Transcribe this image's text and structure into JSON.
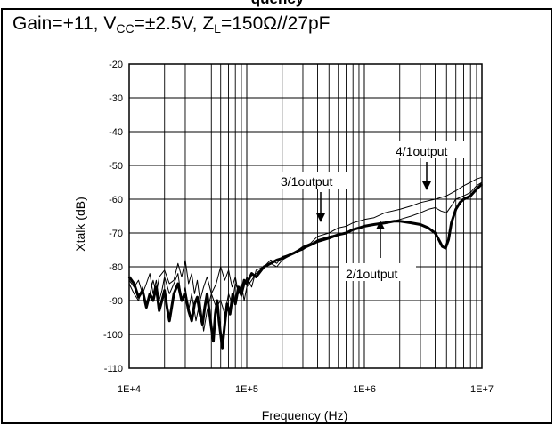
{
  "figure": {
    "cut_title_fragment": "quency",
    "conditions": {
      "gain_text": "Gain=+11, V",
      "vcc_sub": "CC",
      "vcc_text": "=±2.5V, Z",
      "zl_sub": "L",
      "zl_text": "=150Ω//27pF"
    }
  },
  "chart_data": {
    "type": "line",
    "title": "",
    "xlabel": "Frequency (Hz)",
    "ylabel": "Xtalk (dB)",
    "x_scale": "log",
    "xlim": [
      10000,
      10000000
    ],
    "ylim": [
      -110,
      -20
    ],
    "x_ticks": [
      10000,
      100000,
      1000000,
      10000000
    ],
    "x_tick_labels": [
      "1E+4",
      "1E+5",
      "1E+6",
      "1E+7"
    ],
    "y_ticks": [
      -20,
      -30,
      -40,
      -50,
      -60,
      -70,
      -80,
      -90,
      -100,
      -110
    ],
    "y_tick_labels": [
      "-20",
      "-30",
      "-40",
      "-50",
      "-60",
      "-70",
      "-80",
      "-90",
      "-100",
      "-110"
    ],
    "grid": true,
    "annotations": [
      "4/1output",
      "3/1output",
      "2/1output"
    ],
    "series": [
      {
        "name": "3/1output",
        "style": "thin",
        "points": [
          [
            10000,
            -84
          ],
          [
            11000,
            -86
          ],
          [
            12000,
            -84
          ],
          [
            13000,
            -88
          ],
          [
            14000,
            -85
          ],
          [
            15000,
            -82
          ],
          [
            16000,
            -88
          ],
          [
            17000,
            -84
          ],
          [
            18000,
            -90
          ],
          [
            19000,
            -87
          ],
          [
            20000,
            -83
          ],
          [
            22000,
            -88
          ],
          [
            24000,
            -85
          ],
          [
            26000,
            -82
          ],
          [
            28000,
            -90
          ],
          [
            30000,
            -86
          ],
          [
            32000,
            -93
          ],
          [
            34000,
            -88
          ],
          [
            37000,
            -96
          ],
          [
            40000,
            -90
          ],
          [
            43000,
            -99
          ],
          [
            46000,
            -93
          ],
          [
            50000,
            -88
          ],
          [
            55000,
            -92
          ],
          [
            60000,
            -90
          ],
          [
            65000,
            -94
          ],
          [
            70000,
            -88
          ],
          [
            75000,
            -91
          ],
          [
            80000,
            -85
          ],
          [
            90000,
            -89
          ],
          [
            100000,
            -83
          ],
          [
            110000,
            -86
          ],
          [
            120000,
            -81
          ],
          [
            140000,
            -80
          ],
          [
            160000,
            -78
          ],
          [
            180000,
            -79
          ],
          [
            200000,
            -77
          ],
          [
            250000,
            -76
          ],
          [
            300000,
            -74
          ],
          [
            350000,
            -73
          ],
          [
            400000,
            -71
          ],
          [
            500000,
            -70
          ],
          [
            600000,
            -68.5
          ],
          [
            700000,
            -68
          ],
          [
            800000,
            -67
          ],
          [
            1000000,
            -66
          ],
          [
            1200000,
            -65.5
          ],
          [
            1500000,
            -64
          ],
          [
            2000000,
            -63
          ],
          [
            2500000,
            -62
          ],
          [
            3000000,
            -61
          ],
          [
            4000000,
            -60
          ],
          [
            5000000,
            -59
          ],
          [
            6000000,
            -57.5
          ],
          [
            7000000,
            -56
          ],
          [
            8000000,
            -55
          ],
          [
            9000000,
            -54
          ],
          [
            10000000,
            -53.5
          ]
        ]
      },
      {
        "name": "4/1output",
        "style": "thin",
        "points": [
          [
            10000,
            -85
          ],
          [
            11000,
            -88
          ],
          [
            12000,
            -90
          ],
          [
            13000,
            -86
          ],
          [
            14000,
            -92
          ],
          [
            15000,
            -88
          ],
          [
            16000,
            -84
          ],
          [
            17000,
            -88
          ],
          [
            18000,
            -83
          ],
          [
            20000,
            -81
          ],
          [
            22000,
            -85
          ],
          [
            24000,
            -84
          ],
          [
            26000,
            -79
          ],
          [
            28000,
            -83
          ],
          [
            30000,
            -78
          ],
          [
            32000,
            -85
          ],
          [
            34000,
            -82
          ],
          [
            36000,
            -88
          ],
          [
            38000,
            -84
          ],
          [
            40000,
            -90
          ],
          [
            43000,
            -86
          ],
          [
            46000,
            -83
          ],
          [
            50000,
            -88
          ],
          [
            55000,
            -85
          ],
          [
            60000,
            -80
          ],
          [
            65000,
            -84
          ],
          [
            70000,
            -81
          ],
          [
            75000,
            -86
          ],
          [
            80000,
            -83
          ],
          [
            85000,
            -88
          ],
          [
            90000,
            -85
          ],
          [
            95000,
            -90
          ],
          [
            100000,
            -86
          ],
          [
            110000,
            -84
          ],
          [
            120000,
            -82
          ],
          [
            140000,
            -80
          ],
          [
            160000,
            -79
          ],
          [
            180000,
            -80
          ],
          [
            200000,
            -78
          ],
          [
            250000,
            -76
          ],
          [
            300000,
            -75
          ],
          [
            400000,
            -72
          ],
          [
            500000,
            -71
          ],
          [
            700000,
            -70
          ],
          [
            1000000,
            -68
          ],
          [
            1500000,
            -67
          ],
          [
            2000000,
            -66
          ],
          [
            2500000,
            -65
          ],
          [
            3000000,
            -64
          ],
          [
            3500000,
            -63
          ],
          [
            4000000,
            -62.5
          ],
          [
            4500000,
            -63.5
          ],
          [
            5000000,
            -64
          ],
          [
            5500000,
            -62
          ],
          [
            6000000,
            -60
          ],
          [
            7000000,
            -59
          ],
          [
            8000000,
            -58
          ],
          [
            9000000,
            -56
          ],
          [
            10000000,
            -55
          ]
        ]
      },
      {
        "name": "2/1output",
        "style": "thick",
        "points": [
          [
            10000,
            -83
          ],
          [
            11000,
            -85
          ],
          [
            12000,
            -89
          ],
          [
            13000,
            -87
          ],
          [
            14000,
            -92
          ],
          [
            15000,
            -88
          ],
          [
            16000,
            -90
          ],
          [
            17000,
            -86
          ],
          [
            18000,
            -93
          ],
          [
            19000,
            -90
          ],
          [
            20000,
            -87
          ],
          [
            21000,
            -92
          ],
          [
            22000,
            -96
          ],
          [
            24000,
            -88
          ],
          [
            26000,
            -85
          ],
          [
            28000,
            -90
          ],
          [
            30000,
            -88
          ],
          [
            32000,
            -93
          ],
          [
            34000,
            -96
          ],
          [
            36000,
            -91
          ],
          [
            38000,
            -89
          ],
          [
            40000,
            -94
          ],
          [
            42000,
            -97
          ],
          [
            44000,
            -92
          ],
          [
            46000,
            -88
          ],
          [
            48000,
            -93
          ],
          [
            50000,
            -98
          ],
          [
            52000,
            -102
          ],
          [
            54000,
            -94
          ],
          [
            56000,
            -90
          ],
          [
            58000,
            -96
          ],
          [
            60000,
            -100
          ],
          [
            62000,
            -104
          ],
          [
            65000,
            -97
          ],
          [
            68000,
            -91
          ],
          [
            72000,
            -94
          ],
          [
            76000,
            -88
          ],
          [
            80000,
            -91
          ],
          [
            85000,
            -86
          ],
          [
            90000,
            -88
          ],
          [
            95000,
            -84
          ],
          [
            100000,
            -85
          ],
          [
            110000,
            -82
          ],
          [
            120000,
            -83
          ],
          [
            140000,
            -80
          ],
          [
            160000,
            -79
          ],
          [
            180000,
            -78
          ],
          [
            200000,
            -77.5
          ],
          [
            250000,
            -76
          ],
          [
            300000,
            -74.5
          ],
          [
            350000,
            -73.5
          ],
          [
            400000,
            -72.5
          ],
          [
            450000,
            -72
          ],
          [
            500000,
            -71.5
          ],
          [
            600000,
            -70.5
          ],
          [
            700000,
            -70
          ],
          [
            800000,
            -69
          ],
          [
            900000,
            -68.5
          ],
          [
            1000000,
            -68
          ],
          [
            1200000,
            -67.5
          ],
          [
            1500000,
            -67
          ],
          [
            1800000,
            -66.5
          ],
          [
            2000000,
            -66.5
          ],
          [
            2500000,
            -67
          ],
          [
            3000000,
            -67.5
          ],
          [
            3500000,
            -68.5
          ],
          [
            4000000,
            -70
          ],
          [
            4300000,
            -72
          ],
          [
            4600000,
            -74
          ],
          [
            4900000,
            -74.5
          ],
          [
            5200000,
            -72
          ],
          [
            5500000,
            -67
          ],
          [
            6000000,
            -63
          ],
          [
            6500000,
            -61
          ],
          [
            7000000,
            -60
          ],
          [
            7500000,
            -59.5
          ],
          [
            8000000,
            -59
          ],
          [
            9000000,
            -57
          ],
          [
            10000000,
            -55.5
          ]
        ]
      }
    ]
  }
}
